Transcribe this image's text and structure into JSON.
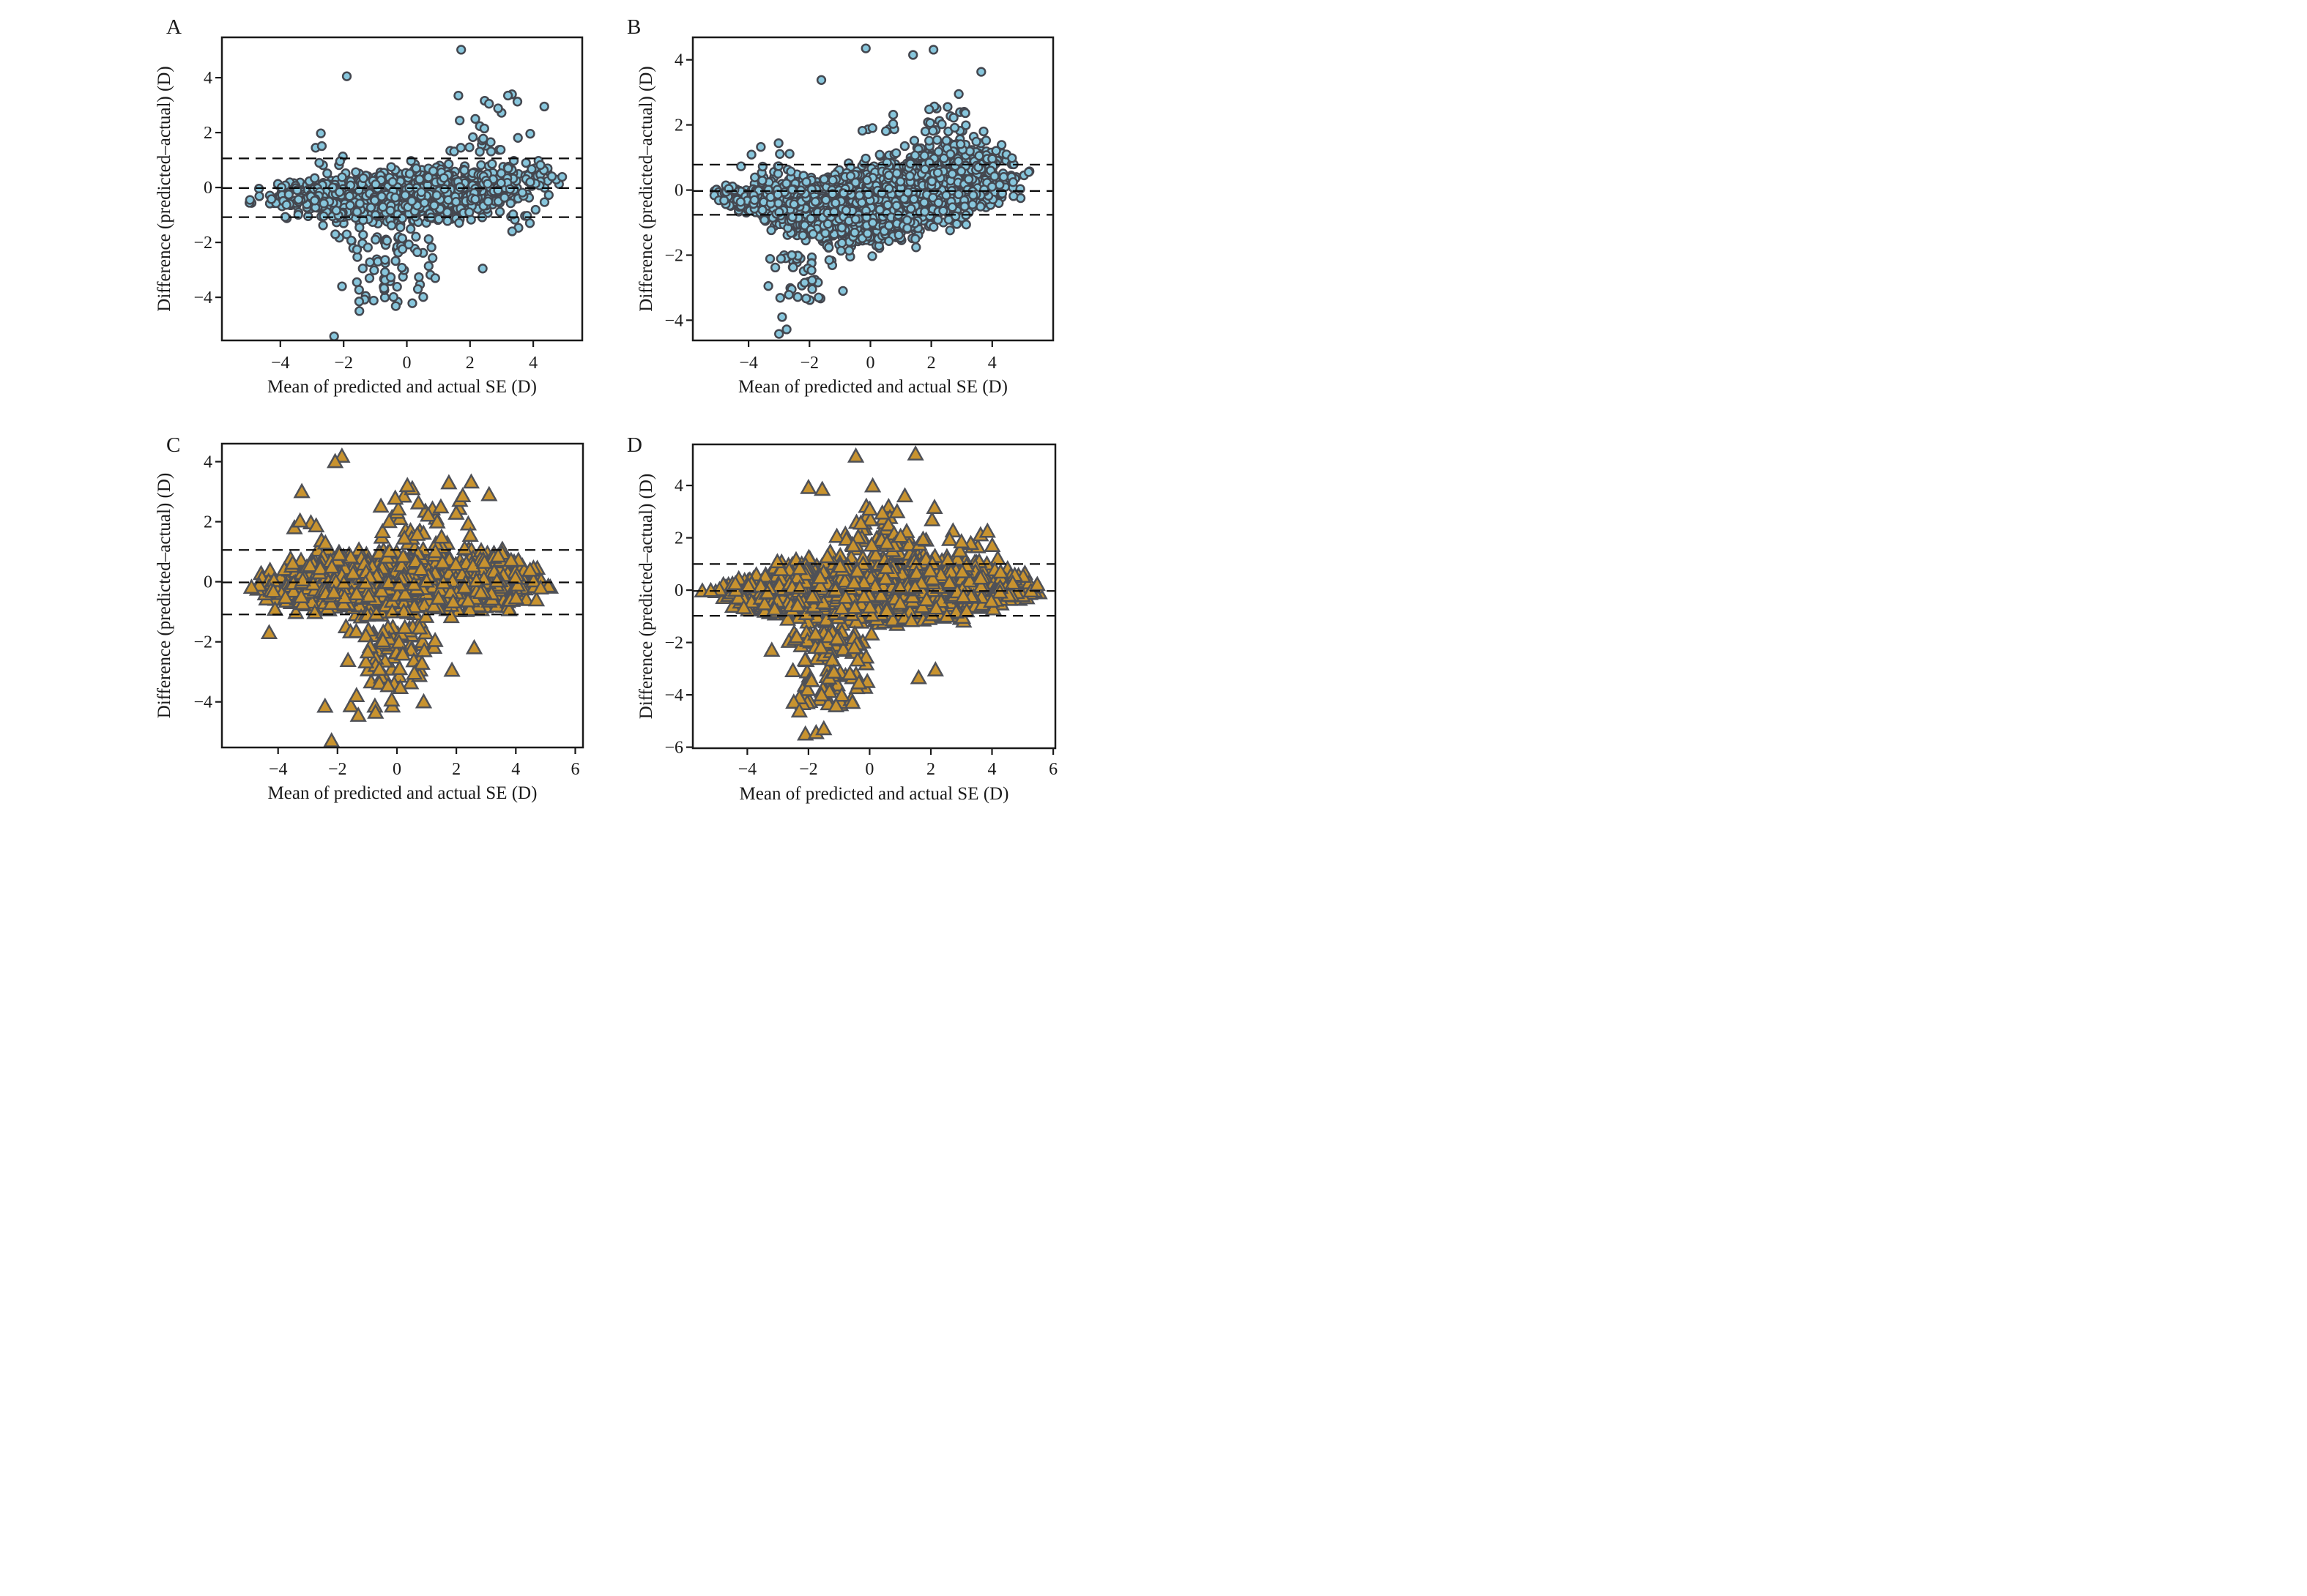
{
  "figure": {
    "background": "#ffffff",
    "axis_color": "#1a1a1a",
    "dash_color": "#0a0a0a",
    "xlabel": "Mean of predicted and actual SE (D)",
    "ylabel": "Difference (predicted–actual) (D)"
  },
  "chart_data": [
    {
      "label": "A",
      "type": "scatter",
      "marker": "circle",
      "marker_fill": "#87C6DC",
      "marker_stroke": "#44474F",
      "xlabel": "Mean of predicted and actual SE (D)",
      "ylabel": "Difference (predicted–actual) (D)",
      "xlim": [
        -5.85,
        5.55
      ],
      "ylim": [
        -5.57,
        5.47
      ],
      "xticks": [
        -4,
        -2,
        0,
        2,
        4
      ],
      "yticks": [
        -4,
        -2,
        0,
        2,
        4
      ],
      "grid": false,
      "mean_line": -0.02,
      "loa_upper": 1.06,
      "loa_lower": -1.08,
      "n_core": 1150,
      "seed": 20240601,
      "envelope": [
        [
          -5.5,
          -0.75,
          0.15
        ],
        [
          -4.5,
          -1.1,
          0.4
        ],
        [
          -3.5,
          -1.45,
          0.65
        ],
        [
          -2,
          -1.75,
          0.85
        ],
        [
          0,
          -1.8,
          1.05
        ],
        [
          2,
          -1.5,
          1.2
        ],
        [
          3.5,
          -0.9,
          1.25
        ],
        [
          4.5,
          -0.5,
          1.3
        ],
        [
          5.35,
          0.1,
          1.35
        ]
      ],
      "tails": [
        {
          "n": 70,
          "xc": -0.5,
          "xs": 1.8,
          "y0": -1.7,
          "y1": -4.3
        },
        {
          "n": 26,
          "xc": 2.6,
          "xs": 1.5,
          "y0": 1.3,
          "y1": 3.4
        },
        {
          "n": 8,
          "xc": -2.5,
          "xs": 0.9,
          "y0": 0.8,
          "y1": 2.0
        },
        {
          "n": 10,
          "xc": 3.8,
          "xs": 1.0,
          "y0": -0.5,
          "y1": -1.6
        }
      ],
      "outliers": [
        [
          1.72,
          5.02
        ],
        [
          -1.9,
          4.05
        ],
        [
          3.2,
          3.35
        ],
        [
          2.6,
          3.05
        ],
        [
          4.35,
          2.95
        ],
        [
          -2.3,
          -5.42
        ],
        [
          -1.5,
          -4.5
        ],
        [
          -0.35,
          -4.32
        ],
        [
          -1.05,
          -4.12
        ],
        [
          0.35,
          -3.7
        ],
        [
          -2.05,
          -3.6
        ],
        [
          2.4,
          -2.95
        ],
        [
          0.9,
          -3.3
        ]
      ]
    },
    {
      "label": "B",
      "type": "scatter",
      "marker": "circle",
      "marker_fill": "#87C6DC",
      "marker_stroke": "#44474F",
      "xlabel": "Mean of predicted and actual SE (D)",
      "ylabel": "Difference (predicted–actual) (D)",
      "xlim": [
        -5.83,
        6.0
      ],
      "ylim": [
        -4.62,
        4.69
      ],
      "xticks": [
        -4,
        -2,
        0,
        2,
        4
      ],
      "yticks": [
        -4,
        -2,
        0,
        2,
        4
      ],
      "grid": false,
      "mean_line": -0.03,
      "loa_upper": 0.78,
      "loa_lower": -0.76,
      "n_core": 2450,
      "seed": 7,
      "envelope": [
        [
          -5.6,
          -0.12,
          0.1
        ],
        [
          -4.5,
          -0.8,
          0.35
        ],
        [
          -3,
          -1.5,
          0.7
        ],
        [
          -1.5,
          -2.05,
          0.95
        ],
        [
          0,
          -2.15,
          1.3
        ],
        [
          1.5,
          -1.9,
          1.8
        ],
        [
          3,
          -1.35,
          1.95
        ],
        [
          4.5,
          -0.8,
          1.8
        ],
        [
          5.7,
          -0.35,
          1.3
        ]
      ],
      "tails": [
        {
          "n": 40,
          "xc": -2.2,
          "xs": 1.3,
          "y0": -2.0,
          "y1": -3.4
        },
        {
          "n": 30,
          "xc": 2.0,
          "xs": 2.5,
          "y0": 1.8,
          "y1": 2.6
        },
        {
          "n": 14,
          "xc": -3.2,
          "xs": 1.2,
          "y0": 0.5,
          "y1": 1.5
        }
      ],
      "outliers": [
        [
          -0.15,
          4.35
        ],
        [
          1.4,
          4.15
        ],
        [
          2.07,
          4.31
        ],
        [
          3.64,
          3.63
        ],
        [
          -1.61,
          3.38
        ],
        [
          2.9,
          2.95
        ],
        [
          -3.0,
          -4.42
        ],
        [
          -2.75,
          -4.28
        ],
        [
          -2.9,
          -3.9
        ],
        [
          -3.35,
          -2.95
        ],
        [
          -1.7,
          -3.3
        ],
        [
          -0.9,
          -3.1
        ]
      ]
    },
    {
      "label": "C",
      "type": "scatter",
      "marker": "triangle",
      "marker_fill": "#C8932F",
      "marker_stroke": "#4F5157",
      "xlabel": "Mean of predicted and actual SE (D)",
      "ylabel": "Difference (predicted–actual) (D)",
      "xlim": [
        -5.89,
        6.26
      ],
      "ylim": [
        -5.52,
        4.6
      ],
      "xticks": [
        -4,
        -2,
        0,
        2,
        4,
        6
      ],
      "yticks": [
        -4,
        -2,
        0,
        2,
        4
      ],
      "grid": false,
      "mean_line": -0.02,
      "loa_upper": 1.06,
      "loa_lower": -1.09,
      "n_core": 1100,
      "seed": 99,
      "envelope": [
        [
          -5.6,
          -0.6,
          0.1
        ],
        [
          -4.5,
          -1.05,
          0.75
        ],
        [
          -3,
          -1.4,
          1.2
        ],
        [
          -1.5,
          -1.5,
          1.4
        ],
        [
          0,
          -1.55,
          1.45
        ],
        [
          1.5,
          -1.5,
          1.5
        ],
        [
          3,
          -1.4,
          1.45
        ],
        [
          4.5,
          -1.0,
          1.1
        ],
        [
          5.9,
          -0.3,
          0.35
        ]
      ],
      "tails": [
        {
          "n": 80,
          "xc": -0.3,
          "xs": 1.8,
          "y0": -1.5,
          "y1": -4.2
        },
        {
          "n": 34,
          "xc": 1.0,
          "xs": 2.0,
          "y0": 1.45,
          "y1": 3.3
        },
        {
          "n": 6,
          "xc": -3.0,
          "xs": 0.8,
          "y0": 1.2,
          "y1": 2.1
        }
      ],
      "outliers": [
        [
          -1.85,
          4.18
        ],
        [
          -2.08,
          4.0
        ],
        [
          -3.2,
          3.0
        ],
        [
          2.5,
          3.32
        ],
        [
          0.35,
          3.2
        ],
        [
          3.1,
          2.9
        ],
        [
          -2.2,
          -5.3
        ],
        [
          -1.3,
          -4.45
        ],
        [
          -0.72,
          -4.35
        ],
        [
          -2.42,
          -4.15
        ],
        [
          0.9,
          -4.0
        ],
        [
          1.85,
          -2.95
        ],
        [
          2.6,
          -2.2
        ],
        [
          -4.3,
          -1.7
        ]
      ]
    },
    {
      "label": "D",
      "type": "scatter",
      "marker": "triangle",
      "marker_fill": "#C8932F",
      "marker_stroke": "#4F5157",
      "xlabel": "Mean of predicted and actual SE (D)",
      "ylabel": "Difference (predicted–actual) (D)",
      "xlim": [
        -5.78,
        6.07
      ],
      "ylim": [
        -6.04,
        5.57
      ],
      "xticks": [
        -4,
        -2,
        0,
        2,
        4,
        6
      ],
      "yticks": [
        -6,
        -4,
        -2,
        0,
        2,
        4
      ],
      "grid": false,
      "mean_line": -0.03,
      "loa_upper": 1.0,
      "loa_lower": -0.98,
      "n_core": 2300,
      "seed": 4242,
      "envelope": [
        [
          -5.5,
          -0.5,
          0.1
        ],
        [
          -4.5,
          -0.95,
          0.7
        ],
        [
          -3,
          -1.35,
          1.25
        ],
        [
          -1.5,
          -1.6,
          1.55
        ],
        [
          0,
          -1.7,
          1.7
        ],
        [
          1.5,
          -1.6,
          1.75
        ],
        [
          3,
          -1.4,
          1.6
        ],
        [
          4.5,
          -0.9,
          1.2
        ],
        [
          6.0,
          -0.25,
          0.3
        ]
      ],
      "tails": [
        {
          "n": 110,
          "xc": -1.3,
          "xs": 1.5,
          "y0": -1.6,
          "y1": -4.4
        },
        {
          "n": 60,
          "xc": 0.3,
          "xs": 1.9,
          "y0": 1.7,
          "y1": 3.4
        },
        {
          "n": 10,
          "xc": 3.3,
          "xs": 1.2,
          "y0": 1.5,
          "y1": 2.6
        }
      ],
      "outliers": [
        [
          1.5,
          5.2
        ],
        [
          -0.45,
          5.12
        ],
        [
          0.1,
          3.98
        ],
        [
          -2.0,
          3.92
        ],
        [
          -1.55,
          3.85
        ],
        [
          1.15,
          3.6
        ],
        [
          -2.1,
          -5.5
        ],
        [
          -1.75,
          -5.45
        ],
        [
          -1.5,
          -5.3
        ],
        [
          -2.3,
          -4.62
        ],
        [
          -1.1,
          -4.42
        ],
        [
          1.6,
          -3.35
        ],
        [
          2.15,
          -3.05
        ],
        [
          -3.2,
          -2.3
        ]
      ]
    }
  ]
}
